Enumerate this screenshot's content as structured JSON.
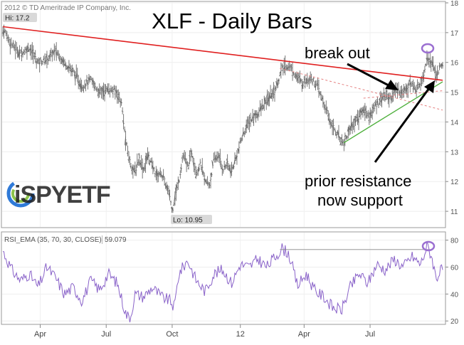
{
  "copyright": "2012 © TD Ameritrade IP Company, Inc.",
  "logo_text": "iSPYETF",
  "chart_data": [
    {
      "type": "ohlc",
      "title": "XLF - Daily Bars",
      "ylim": [
        10.5,
        18
      ],
      "y_ticks": [
        11,
        12,
        13,
        14,
        15,
        16,
        17,
        18
      ],
      "x_ticks": [
        "Apr",
        "Jul",
        "Oct",
        "12",
        "Apr",
        "Jul"
      ],
      "hi_label": "Hi: 17.2",
      "lo_label": "Lo: 10.95",
      "hi_value": 17.2,
      "lo_value": 10.95,
      "colors": {
        "bars": "#6b6b6b",
        "resistance": "#e02020",
        "support": "#4caf3a",
        "dashed": "#e58080",
        "highlight": "#9b6fd1"
      },
      "approx_path": [
        {
          "t": 0.0,
          "v": 17.15
        },
        {
          "t": 0.02,
          "v": 16.6
        },
        {
          "t": 0.04,
          "v": 16.3
        },
        {
          "t": 0.06,
          "v": 16.5
        },
        {
          "t": 0.08,
          "v": 16.0
        },
        {
          "t": 0.1,
          "v": 16.1
        },
        {
          "t": 0.12,
          "v": 16.4
        },
        {
          "t": 0.14,
          "v": 16.0
        },
        {
          "t": 0.16,
          "v": 15.7
        },
        {
          "t": 0.18,
          "v": 15.2
        },
        {
          "t": 0.2,
          "v": 15.4
        },
        {
          "t": 0.22,
          "v": 15.0
        },
        {
          "t": 0.24,
          "v": 15.1
        },
        {
          "t": 0.26,
          "v": 15.0
        },
        {
          "t": 0.27,
          "v": 14.6
        },
        {
          "t": 0.28,
          "v": 13.3
        },
        {
          "t": 0.29,
          "v": 12.6
        },
        {
          "t": 0.3,
          "v": 12.3
        },
        {
          "t": 0.31,
          "v": 12.8
        },
        {
          "t": 0.32,
          "v": 12.4
        },
        {
          "t": 0.33,
          "v": 12.9
        },
        {
          "t": 0.34,
          "v": 12.5
        },
        {
          "t": 0.35,
          "v": 12.2
        },
        {
          "t": 0.36,
          "v": 12.3
        },
        {
          "t": 0.37,
          "v": 11.9
        },
        {
          "t": 0.38,
          "v": 11.5
        },
        {
          "t": 0.385,
          "v": 11.0
        },
        {
          "t": 0.39,
          "v": 11.4
        },
        {
          "t": 0.4,
          "v": 12.0
        },
        {
          "t": 0.41,
          "v": 12.9
        },
        {
          "t": 0.42,
          "v": 12.5
        },
        {
          "t": 0.43,
          "v": 13.0
        },
        {
          "t": 0.44,
          "v": 12.3
        },
        {
          "t": 0.45,
          "v": 12.6
        },
        {
          "t": 0.46,
          "v": 12.0
        },
        {
          "t": 0.47,
          "v": 11.9
        },
        {
          "t": 0.48,
          "v": 12.7
        },
        {
          "t": 0.49,
          "v": 12.9
        },
        {
          "t": 0.5,
          "v": 12.4
        },
        {
          "t": 0.51,
          "v": 12.6
        },
        {
          "t": 0.52,
          "v": 12.3
        },
        {
          "t": 0.53,
          "v": 12.8
        },
        {
          "t": 0.54,
          "v": 13.3
        },
        {
          "t": 0.55,
          "v": 13.7
        },
        {
          "t": 0.56,
          "v": 14.0
        },
        {
          "t": 0.58,
          "v": 14.3
        },
        {
          "t": 0.6,
          "v": 14.7
        },
        {
          "t": 0.62,
          "v": 15.1
        },
        {
          "t": 0.635,
          "v": 15.8
        },
        {
          "t": 0.65,
          "v": 15.9
        },
        {
          "t": 0.665,
          "v": 15.6
        },
        {
          "t": 0.68,
          "v": 15.3
        },
        {
          "t": 0.7,
          "v": 15.5
        },
        {
          "t": 0.715,
          "v": 15.2
        },
        {
          "t": 0.73,
          "v": 14.6
        },
        {
          "t": 0.745,
          "v": 14.0
        },
        {
          "t": 0.76,
          "v": 13.6
        },
        {
          "t": 0.775,
          "v": 13.3
        },
        {
          "t": 0.79,
          "v": 13.8
        },
        {
          "t": 0.805,
          "v": 14.1
        },
        {
          "t": 0.82,
          "v": 14.4
        },
        {
          "t": 0.835,
          "v": 14.2
        },
        {
          "t": 0.85,
          "v": 14.6
        },
        {
          "t": 0.865,
          "v": 14.9
        },
        {
          "t": 0.88,
          "v": 14.8
        },
        {
          "t": 0.895,
          "v": 15.1
        },
        {
          "t": 0.91,
          "v": 15.0
        },
        {
          "t": 0.925,
          "v": 15.3
        },
        {
          "t": 0.94,
          "v": 15.1
        },
        {
          "t": 0.955,
          "v": 15.5
        },
        {
          "t": 0.965,
          "v": 16.2
        },
        {
          "t": 0.975,
          "v": 16.0
        },
        {
          "t": 0.985,
          "v": 15.6
        },
        {
          "t": 1.0,
          "v": 15.9
        }
      ],
      "trendlines": {
        "resistance": {
          "t0": 0.0,
          "v0": 17.2,
          "t1": 1.0,
          "v1": 15.4
        },
        "support": {
          "t0": 0.775,
          "v0": 13.3,
          "t1": 1.0,
          "v1": 15.35
        },
        "dashed": [
          {
            "t0": 0.63,
            "v0": 15.8,
            "t1": 1.0,
            "v1": 14.4
          },
          {
            "t0": 0.82,
            "v0": 14.8,
            "t1": 1.0,
            "v1": 15.05
          }
        ]
      },
      "annotations": [
        {
          "text": "break out"
        },
        {
          "text": "prior resistance"
        },
        {
          "text": "now support"
        }
      ]
    },
    {
      "type": "line",
      "legend": "RSI_EMA (35, 70, 30, CLOSE)",
      "last_value_label": "59.079",
      "ylim": [
        18,
        84
      ],
      "y_ticks": [
        20,
        40,
        60,
        80
      ],
      "reference_level": 73,
      "color": "#8a63c9",
      "approx_path": [
        {
          "t": 0.0,
          "v": 72
        },
        {
          "t": 0.02,
          "v": 58
        },
        {
          "t": 0.04,
          "v": 50
        },
        {
          "t": 0.06,
          "v": 55
        },
        {
          "t": 0.08,
          "v": 45
        },
        {
          "t": 0.1,
          "v": 60
        },
        {
          "t": 0.12,
          "v": 52
        },
        {
          "t": 0.14,
          "v": 40
        },
        {
          "t": 0.16,
          "v": 45
        },
        {
          "t": 0.18,
          "v": 35
        },
        {
          "t": 0.2,
          "v": 50
        },
        {
          "t": 0.22,
          "v": 43
        },
        {
          "t": 0.24,
          "v": 55
        },
        {
          "t": 0.26,
          "v": 48
        },
        {
          "t": 0.28,
          "v": 25
        },
        {
          "t": 0.29,
          "v": 22
        },
        {
          "t": 0.3,
          "v": 40
        },
        {
          "t": 0.32,
          "v": 38
        },
        {
          "t": 0.34,
          "v": 45
        },
        {
          "t": 0.36,
          "v": 38
        },
        {
          "t": 0.38,
          "v": 35
        },
        {
          "t": 0.39,
          "v": 30
        },
        {
          "t": 0.4,
          "v": 55
        },
        {
          "t": 0.42,
          "v": 65
        },
        {
          "t": 0.44,
          "v": 50
        },
        {
          "t": 0.46,
          "v": 42
        },
        {
          "t": 0.48,
          "v": 55
        },
        {
          "t": 0.5,
          "v": 58
        },
        {
          "t": 0.52,
          "v": 48
        },
        {
          "t": 0.54,
          "v": 62
        },
        {
          "t": 0.56,
          "v": 60
        },
        {
          "t": 0.58,
          "v": 66
        },
        {
          "t": 0.6,
          "v": 60
        },
        {
          "t": 0.62,
          "v": 68
        },
        {
          "t": 0.635,
          "v": 74
        },
        {
          "t": 0.65,
          "v": 70
        },
        {
          "t": 0.67,
          "v": 46
        },
        {
          "t": 0.69,
          "v": 55
        },
        {
          "t": 0.71,
          "v": 42
        },
        {
          "t": 0.73,
          "v": 38
        },
        {
          "t": 0.75,
          "v": 30
        },
        {
          "t": 0.77,
          "v": 28
        },
        {
          "t": 0.79,
          "v": 45
        },
        {
          "t": 0.81,
          "v": 55
        },
        {
          "t": 0.83,
          "v": 48
        },
        {
          "t": 0.85,
          "v": 62
        },
        {
          "t": 0.87,
          "v": 58
        },
        {
          "t": 0.89,
          "v": 66
        },
        {
          "t": 0.91,
          "v": 60
        },
        {
          "t": 0.93,
          "v": 68
        },
        {
          "t": 0.95,
          "v": 62
        },
        {
          "t": 0.965,
          "v": 76
        },
        {
          "t": 0.975,
          "v": 68
        },
        {
          "t": 0.985,
          "v": 52
        },
        {
          "t": 1.0,
          "v": 59
        }
      ]
    }
  ]
}
